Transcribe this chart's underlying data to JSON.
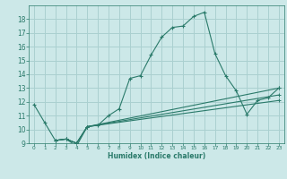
{
  "xlabel": "Humidex (Indice chaleur)",
  "bg_color": "#cce8e8",
  "grid_color": "#aad0d0",
  "line_color": "#2a7a6a",
  "xlim": [
    -0.5,
    23.5
  ],
  "ylim": [
    9,
    19
  ],
  "xticks": [
    0,
    1,
    2,
    3,
    4,
    5,
    6,
    7,
    8,
    9,
    10,
    11,
    12,
    13,
    14,
    15,
    16,
    17,
    18,
    19,
    20,
    21,
    22,
    23
  ],
  "yticks": [
    9,
    10,
    11,
    12,
    13,
    14,
    15,
    16,
    17,
    18
  ],
  "series": [
    {
      "x": [
        0,
        1,
        2,
        3,
        4,
        5,
        6,
        7,
        8,
        9,
        10,
        11,
        12,
        13,
        14,
        15,
        16,
        17,
        18,
        19,
        20,
        21,
        22,
        23
      ],
      "y": [
        11.8,
        10.5,
        9.2,
        9.3,
        8.8,
        10.2,
        10.3,
        11.0,
        11.5,
        13.7,
        13.9,
        15.4,
        16.7,
        17.4,
        17.5,
        18.2,
        18.5,
        15.5,
        13.9,
        12.8,
        11.1,
        12.1,
        12.3,
        13.0
      ]
    },
    {
      "x": [
        2,
        3,
        4,
        5,
        23
      ],
      "y": [
        9.2,
        9.3,
        9.0,
        10.2,
        13.0
      ]
    },
    {
      "x": [
        2,
        3,
        4,
        5,
        23
      ],
      "y": [
        9.2,
        9.3,
        9.0,
        10.2,
        12.5
      ]
    },
    {
      "x": [
        2,
        3,
        4,
        5,
        23
      ],
      "y": [
        9.2,
        9.3,
        9.0,
        10.2,
        12.1
      ]
    }
  ]
}
